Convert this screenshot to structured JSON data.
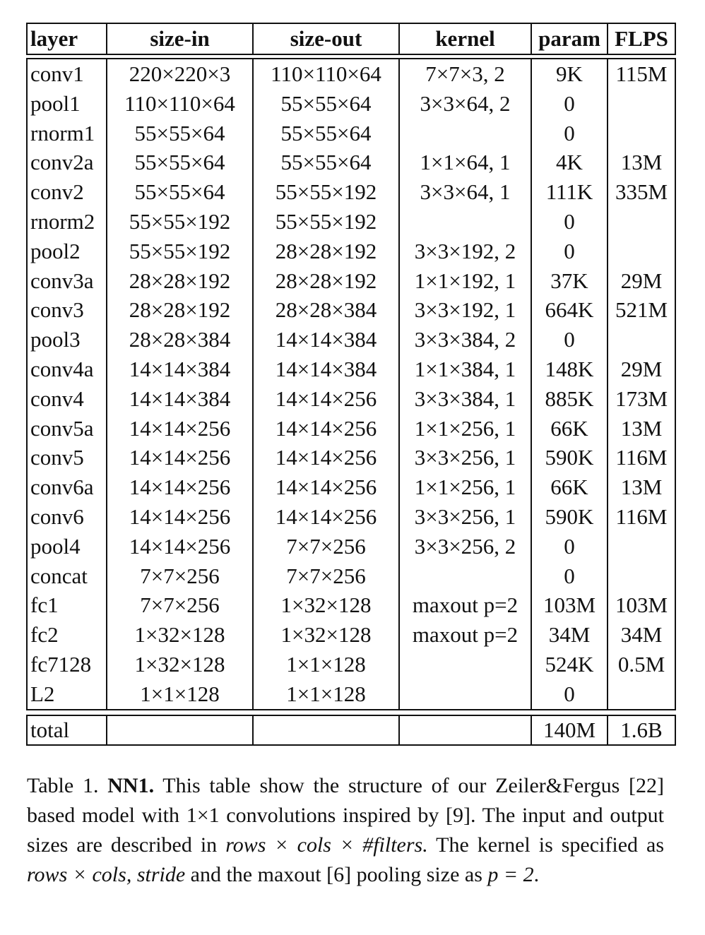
{
  "table": {
    "headers": [
      "layer",
      "size-in",
      "size-out",
      "kernel",
      "param",
      "FLPS"
    ],
    "rows": [
      [
        "conv1",
        "220×220×3",
        "110×110×64",
        "7×7×3, 2",
        "9K",
        "115M"
      ],
      [
        "pool1",
        "110×110×64",
        "55×55×64",
        "3×3×64, 2",
        "0",
        ""
      ],
      [
        "rnorm1",
        "55×55×64",
        "55×55×64",
        "",
        "0",
        ""
      ],
      [
        "conv2a",
        "55×55×64",
        "55×55×64",
        "1×1×64, 1",
        "4K",
        "13M"
      ],
      [
        "conv2",
        "55×55×64",
        "55×55×192",
        "3×3×64, 1",
        "111K",
        "335M"
      ],
      [
        "rnorm2",
        "55×55×192",
        "55×55×192",
        "",
        "0",
        ""
      ],
      [
        "pool2",
        "55×55×192",
        "28×28×192",
        "3×3×192, 2",
        "0",
        ""
      ],
      [
        "conv3a",
        "28×28×192",
        "28×28×192",
        "1×1×192, 1",
        "37K",
        "29M"
      ],
      [
        "conv3",
        "28×28×192",
        "28×28×384",
        "3×3×192, 1",
        "664K",
        "521M"
      ],
      [
        "pool3",
        "28×28×384",
        "14×14×384",
        "3×3×384, 2",
        "0",
        ""
      ],
      [
        "conv4a",
        "14×14×384",
        "14×14×384",
        "1×1×384, 1",
        "148K",
        "29M"
      ],
      [
        "conv4",
        "14×14×384",
        "14×14×256",
        "3×3×384, 1",
        "885K",
        "173M"
      ],
      [
        "conv5a",
        "14×14×256",
        "14×14×256",
        "1×1×256, 1",
        "66K",
        "13M"
      ],
      [
        "conv5",
        "14×14×256",
        "14×14×256",
        "3×3×256, 1",
        "590K",
        "116M"
      ],
      [
        "conv6a",
        "14×14×256",
        "14×14×256",
        "1×1×256, 1",
        "66K",
        "13M"
      ],
      [
        "conv6",
        "14×14×256",
        "14×14×256",
        "3×3×256, 1",
        "590K",
        "116M"
      ],
      [
        "pool4",
        "14×14×256",
        "7×7×256",
        "3×3×256, 2",
        "0",
        ""
      ],
      [
        "concat",
        "7×7×256",
        "7×7×256",
        "",
        "0",
        ""
      ],
      [
        "fc1",
        "7×7×256",
        "1×32×128",
        "maxout p=2",
        "103M",
        "103M"
      ],
      [
        "fc2",
        "1×32×128",
        "1×32×128",
        "maxout p=2",
        "34M",
        "34M"
      ],
      [
        "fc7128",
        "1×32×128",
        "1×1×128",
        "",
        "524K",
        "0.5M"
      ],
      [
        "L2",
        "1×1×128",
        "1×1×128",
        "",
        "0",
        ""
      ]
    ],
    "total": [
      "total",
      "",
      "",
      "",
      "140M",
      "1.6B"
    ]
  },
  "caption": {
    "label": "Table 1.",
    "name": "NN1.",
    "text_1": "This table show the structure of our Zeiler&Fergus [22] based model with 1×1 convolutions inspired by [9]. The input and output sizes are described in",
    "expr_io": "rows × cols × #filters.",
    "text_2": "The kernel is specified as",
    "expr_kernel": "rows × cols, stride",
    "text_3": "and the maxout [6] pooling size as",
    "expr_p": "p = 2",
    "text_4": "."
  }
}
